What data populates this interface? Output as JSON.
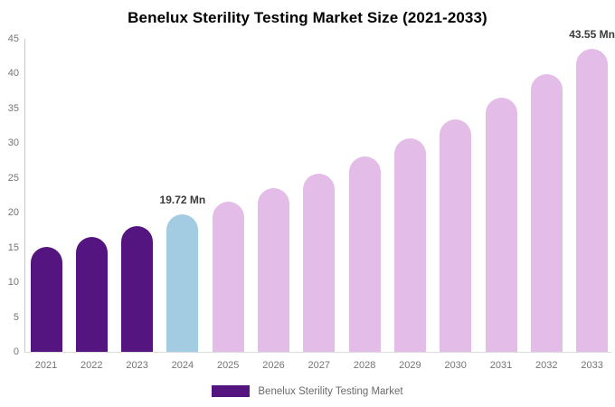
{
  "chart_data": {
    "type": "bar",
    "title": "Benelux Sterility Testing Market Size (2021-2033)",
    "categories": [
      "2021",
      "2022",
      "2023",
      "2024",
      "2025",
      "2026",
      "2027",
      "2028",
      "2029",
      "2030",
      "2031",
      "2032",
      "2033"
    ],
    "values": [
      15.14,
      16.53,
      18.06,
      19.72,
      21.53,
      23.52,
      25.68,
      28.05,
      30.63,
      33.45,
      36.53,
      39.89,
      43.55
    ],
    "unit": "Mn",
    "xlabel": "",
    "ylabel": "",
    "ylim": [
      0,
      45
    ],
    "yticks": [
      0,
      5,
      10,
      15,
      20,
      25,
      30,
      35,
      40,
      45
    ],
    "grid": false,
    "bar_colors": [
      "#541580",
      "#541580",
      "#541580",
      "#A3CBE1",
      "#E3BCE8",
      "#E3BCE8",
      "#E3BCE8",
      "#E3BCE8",
      "#E3BCE8",
      "#E3BCE8",
      "#E3BCE8",
      "#E3BCE8",
      "#E3BCE8"
    ],
    "color_roles": {
      "historical": "#541580",
      "base_year": "#A3CBE1",
      "forecast": "#E3BCE8"
    },
    "annotations": [
      {
        "category": "2024",
        "text": "19.72 Mn"
      },
      {
        "category": "2033",
        "text": "43.55 Mn"
      }
    ],
    "legend": {
      "position": "bottom",
      "label": "Benelux Sterility Testing Market",
      "swatch_color": "#541580"
    },
    "axis_style": {
      "tick_label_color": "#757575",
      "y_axis_line_color": "#c9c9c9",
      "x_axis_line_color": "#dcdcdc"
    }
  }
}
